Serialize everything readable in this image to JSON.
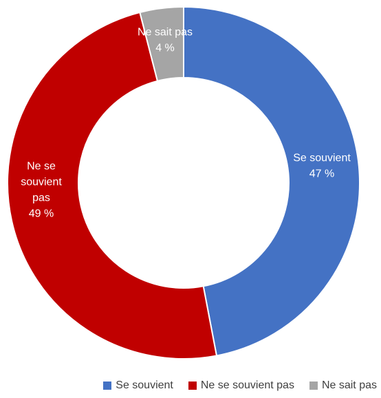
{
  "chart_data": {
    "type": "pie",
    "variant": "donut",
    "slices": [
      {
        "name": "Se souvient",
        "value": 47,
        "label_lines": [
          "Se souvient",
          "47 %"
        ],
        "color": "#4472C4"
      },
      {
        "name": "Ne se souvient pas",
        "value": 49,
        "label_lines": [
          "Ne se",
          "souvient",
          "pas",
          "49 %"
        ],
        "color": "#C00000"
      },
      {
        "name": "Ne sait pas",
        "value": 4,
        "label_lines": [
          "Ne sait pas",
          "4 %"
        ],
        "color": "#A5A5A5"
      }
    ],
    "legend_position": "bottom"
  }
}
